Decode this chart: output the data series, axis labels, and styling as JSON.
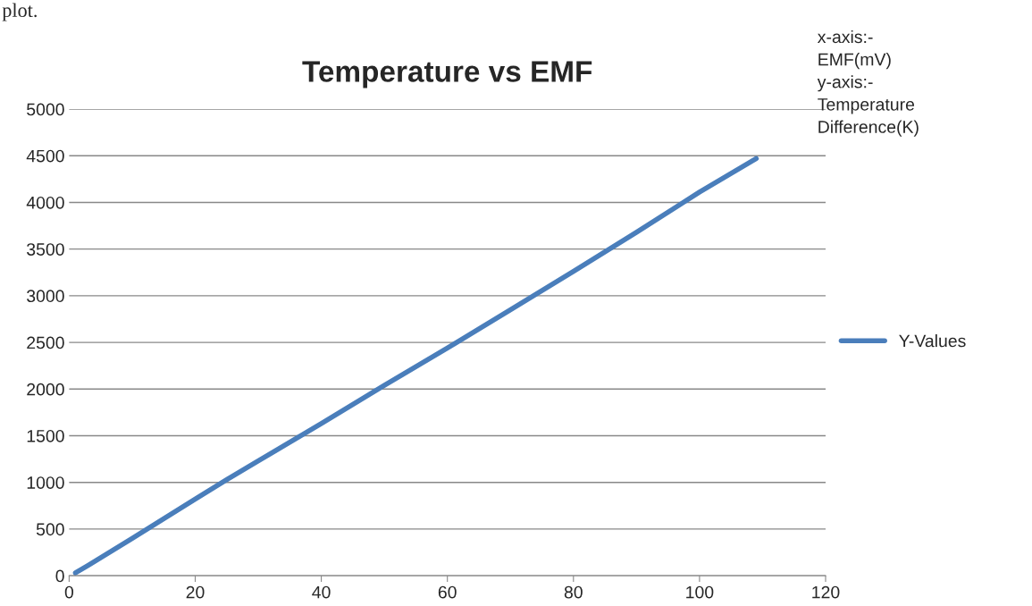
{
  "chart_data": {
    "type": "line",
    "title": "Temperature vs EMF",
    "x": [
      1,
      3,
      10,
      20,
      25,
      30,
      40,
      50,
      60,
      70,
      80,
      90,
      100,
      109
    ],
    "series": [
      {
        "name": "Y-Values",
        "color": "#4a7ebb",
        "values": [
          30,
          110,
          400,
          820,
          1030,
          1230,
          1630,
          2040,
          2440,
          2850,
          3260,
          3680,
          4110,
          4470
        ]
      }
    ],
    "xlim": [
      0,
      120
    ],
    "xticks": [
      0,
      20,
      40,
      60,
      80,
      100,
      120
    ],
    "ylim": [
      0,
      5000
    ],
    "yticks": [
      0,
      500,
      1000,
      1500,
      2000,
      2500,
      3000,
      3500,
      4000,
      4500,
      5000
    ],
    "grid": "y",
    "legend": "right",
    "marker": "none",
    "line_style": "solid",
    "annotations": [
      "plot.",
      "x-axis:-\nEMF(mV)\ny-axis:-\nTemperature\nDifference(K)"
    ]
  }
}
